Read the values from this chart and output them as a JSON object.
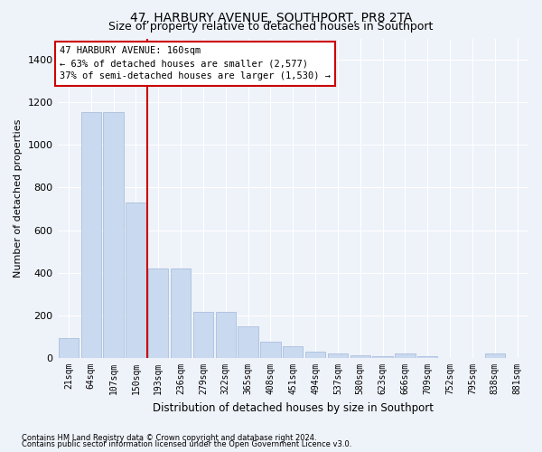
{
  "title": "47, HARBURY AVENUE, SOUTHPORT, PR8 2TA",
  "subtitle": "Size of property relative to detached houses in Southport",
  "xlabel": "Distribution of detached houses by size in Southport",
  "ylabel": "Number of detached properties",
  "categories": [
    "21sqm",
    "64sqm",
    "107sqm",
    "150sqm",
    "193sqm",
    "236sqm",
    "279sqm",
    "322sqm",
    "365sqm",
    "408sqm",
    "451sqm",
    "494sqm",
    "537sqm",
    "580sqm",
    "623sqm",
    "666sqm",
    "709sqm",
    "752sqm",
    "795sqm",
    "838sqm",
    "881sqm"
  ],
  "values": [
    95,
    1155,
    1155,
    730,
    420,
    420,
    215,
    215,
    150,
    75,
    55,
    30,
    20,
    15,
    10,
    20,
    8,
    0,
    0,
    20,
    0
  ],
  "bar_color": "#c9d9ef",
  "bar_edge_color": "#a0b8d8",
  "redline_x": 3.5,
  "annotation_text": "47 HARBURY AVENUE: 160sqm\n← 63% of detached houses are smaller (2,577)\n37% of semi-detached houses are larger (1,530) →",
  "ylim": [
    0,
    1500
  ],
  "yticks": [
    0,
    200,
    400,
    600,
    800,
    1000,
    1200,
    1400
  ],
  "footer_line1": "Contains HM Land Registry data © Crown copyright and database right 2024.",
  "footer_line2": "Contains public sector information licensed under the Open Government Licence v3.0.",
  "bg_color": "#eef2f9",
  "plot_bg_color": "#eef2f9",
  "grid_color": "#ffffff",
  "title_fontsize": 10,
  "subtitle_fontsize": 9,
  "annotation_box_color": "#ffffff",
  "annotation_box_edge": "#cc0000",
  "redline_color": "#cc0000"
}
